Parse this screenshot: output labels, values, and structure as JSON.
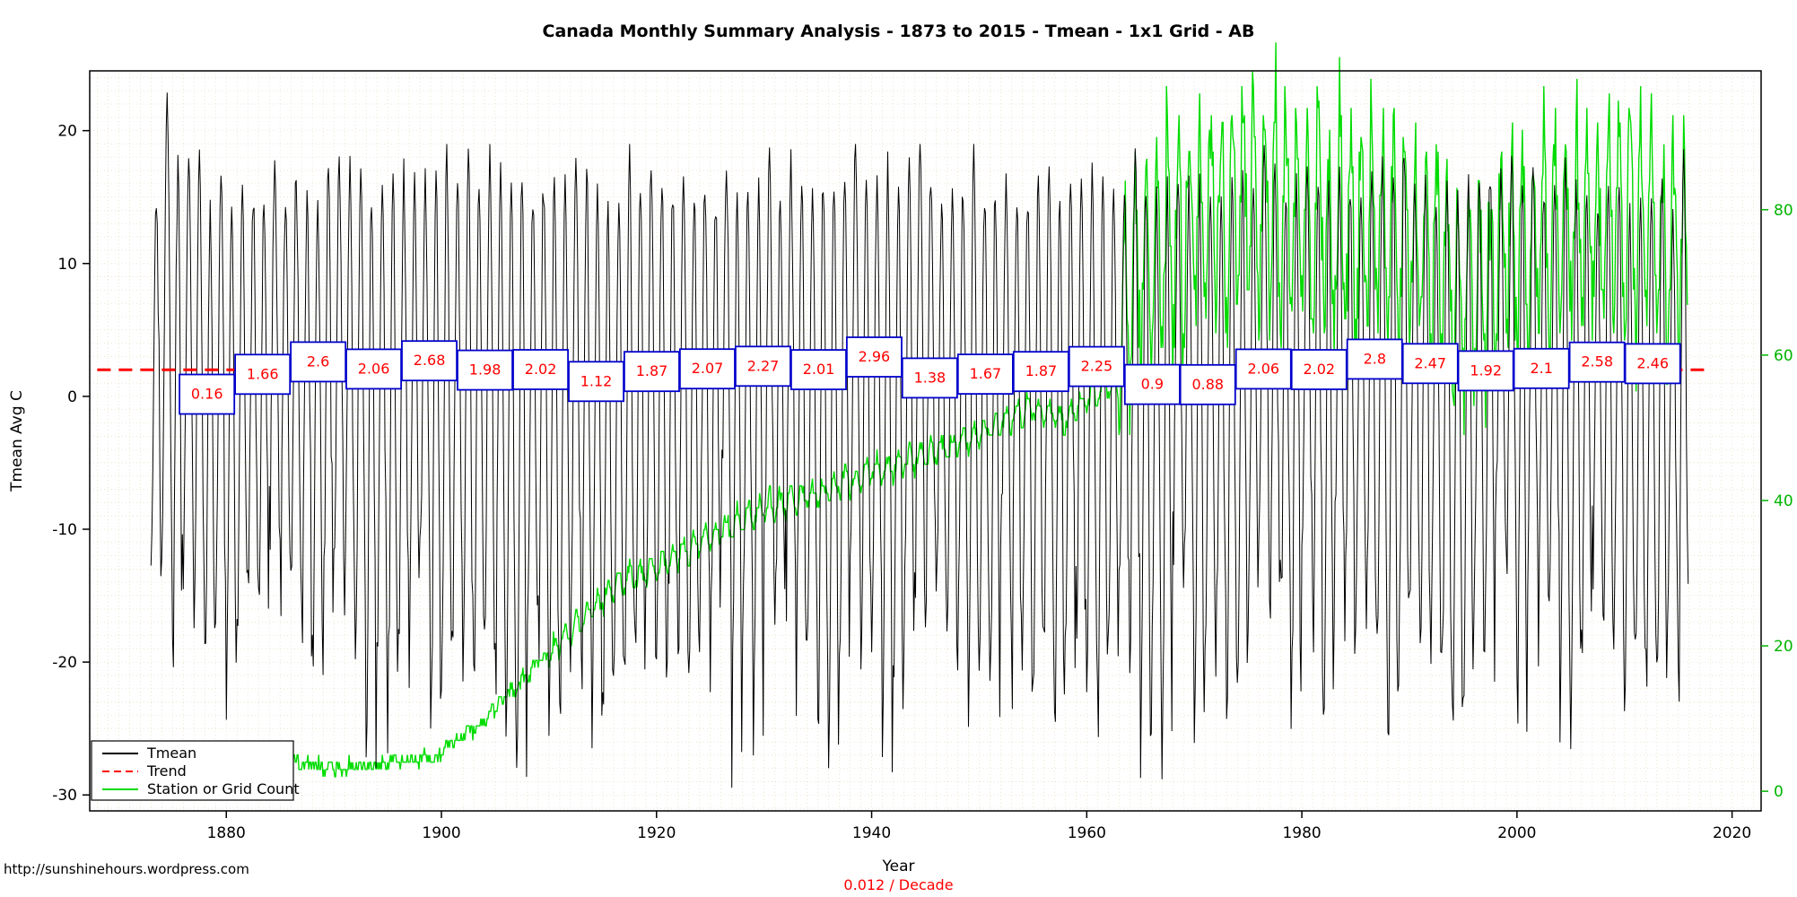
{
  "footer": {
    "source_url": "http://sunshinehours.wordpress.com"
  },
  "legend": {
    "entries": [
      {
        "label": "Tmean",
        "color": "#000000",
        "dash": "solid"
      },
      {
        "label": "Trend",
        "color": "#ff0000",
        "dash": "dashed"
      },
      {
        "label": "Station or Grid Count",
        "color": "#00dc00",
        "dash": "solid"
      }
    ]
  },
  "chart_data": {
    "type": "line",
    "title": "Canada Monthly Summary Analysis - 1873 to 2015 - Tmean - 1x1 Grid - AB",
    "xlabel": "Year",
    "ylabel": "Tmean Avg C",
    "trend": {
      "value_c": 2.0,
      "rate_per_decade": 0.012,
      "label": "0.012  / Decade"
    },
    "x_ticks": [
      1880,
      1900,
      1920,
      1940,
      1960,
      1980,
      2000,
      2020
    ],
    "y_left_ticks": [
      -30,
      -20,
      -10,
      0,
      10,
      20
    ],
    "y_right_ticks": [
      0,
      20,
      40,
      60,
      80
    ],
    "x_range": [
      1867.3,
      2022.7
    ],
    "y_left_range": [
      -31.2,
      24.5
    ],
    "y_right_range": [
      -2.7,
      99.1
    ],
    "period_means": {
      "period_years": 5,
      "first_center_year": 1878.2,
      "spacing_years": 5.17,
      "box_width_years": 5.1,
      "values": [
        0.16,
        1.66,
        2.6,
        2.06,
        2.68,
        1.98,
        2.02,
        1.12,
        1.87,
        2.07,
        2.27,
        2.01,
        2.96,
        1.38,
        1.67,
        1.87,
        2.25,
        0.9,
        0.88,
        2.06,
        2.02,
        2.8,
        2.47,
        1.92,
        2.1,
        2.58,
        2.46
      ]
    },
    "tmean_series": {
      "start_year": 1873,
      "end_year": 2015,
      "summer_high_mean": 16.3,
      "summer_high_sd": 1.2,
      "winter_low_mean": -19,
      "winter_low_sd": 4.5,
      "anomalies": [
        {
          "year": 1874,
          "summer_high": 22.3,
          "winter_low": -12
        }
      ]
    },
    "station_count_series": {
      "pre_anchors": [
        [
          1873,
          1
        ],
        [
          1878,
          2
        ],
        [
          1882,
          5
        ],
        [
          1886,
          4
        ],
        [
          1890,
          3
        ],
        [
          1895,
          4
        ],
        [
          1900,
          5
        ],
        [
          1904,
          10
        ],
        [
          1908,
          16
        ],
        [
          1912,
          22
        ],
        [
          1916,
          28
        ],
        [
          1920,
          31
        ],
        [
          1925,
          35
        ],
        [
          1930,
          39
        ],
        [
          1935,
          41
        ],
        [
          1940,
          44
        ],
        [
          1945,
          46
        ],
        [
          1950,
          49
        ],
        [
          1955,
          53
        ],
        [
          1958,
          51
        ],
        [
          1960,
          54
        ],
        [
          1962,
          56
        ]
      ],
      "post_base_anchors": [
        [
          1963,
          62
        ],
        [
          1965,
          70
        ],
        [
          1968,
          76
        ],
        [
          1972,
          79
        ],
        [
          1976,
          81
        ],
        [
          1980,
          79
        ],
        [
          1985,
          77
        ],
        [
          1990,
          75
        ],
        [
          1993,
          72
        ],
        [
          1996,
          68
        ],
        [
          2000,
          74
        ],
        [
          2004,
          78
        ],
        [
          2008,
          79
        ],
        [
          2012,
          78
        ],
        [
          2015,
          74
        ]
      ],
      "post_seasonal_amplitude": 13,
      "post_noise": 4,
      "pre_noise": 1
    },
    "colors": {
      "tmean": "#000000",
      "trend": "#ff0000",
      "count": "#00dc00",
      "right_axis": "#00b400",
      "box_border": "#0000cc",
      "box_value": "#ff0000",
      "grid": "#eadfc8",
      "axis": "#000000"
    }
  }
}
